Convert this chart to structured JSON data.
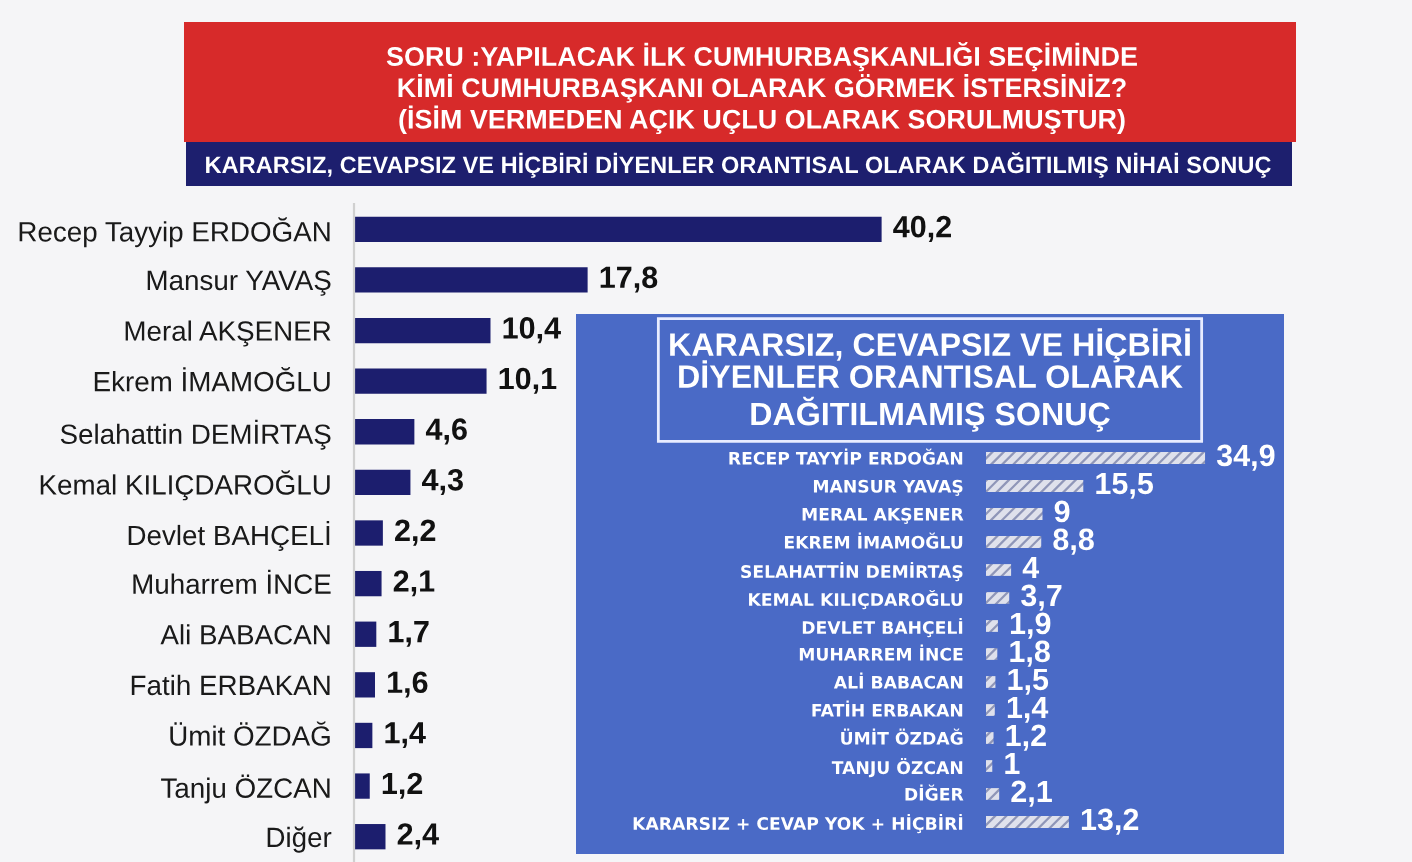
{
  "chart_data": [
    {
      "type": "bar",
      "orientation": "horizontal",
      "title": "SORU :YAPILACAK İLK CUMHURBAŞKANLIĞI SEÇİMİNDE\nKİMİ CUMHURBAŞKANI OLARAK GÖRMEK İSTERSİNİZ?\n(İSİM VERMEDEN AÇIK UÇLU OLARAK SORULMUŞTUR)",
      "subtitle": "KARARSIZ, CEVAPSIZ VE HİÇBİRİ DİYENLER ORANTISAL OLARAK DAĞITILMIŞ NİHAİ SONUÇ",
      "categories": [
        "Recep Tayyip ERDOĞAN",
        "Mansur YAVAŞ",
        "Meral AKŞENER",
        "Ekrem İMAMOĞLU",
        "Selahattin DEMİRTAŞ",
        "Kemal KILIÇDAROĞLU",
        "Devlet BAHÇELİ",
        "Muharrem İNCE",
        "Ali BABACAN",
        "Fatih ERBAKAN",
        "Ümit ÖZDAĞ",
        "Tanju ÖZCAN",
        "Diğer"
      ],
      "values": [
        40.2,
        17.8,
        10.4,
        10.1,
        4.6,
        4.3,
        2.2,
        2.1,
        1.7,
        1.6,
        1.4,
        1.2,
        2.4
      ],
      "value_labels": [
        "40,2",
        "17,8",
        "10,4",
        "10,1",
        "4,6",
        "4,3",
        "2,2",
        "2,1",
        "1,7",
        "1,6",
        "1,4",
        "1,2",
        "2,4"
      ],
      "color": "#1c1e6e",
      "tick_labels": "y"
    },
    {
      "type": "bar",
      "orientation": "horizontal",
      "title": "KARARSIZ, CEVAPSIZ VE HİÇBİRİ\nDİYENLER ORANTISAL OLARAK\nDAĞITILMAMIŞ SONUÇ",
      "categories": [
        "RECEP TAYYİP ERDOĞAN",
        "MANSUR YAVAŞ",
        "MERAL AKŞENER",
        "EKREM İMAMOĞLU",
        "SELAHATTİN DEMİRTAŞ",
        "KEMAL KILIÇDAROĞLU",
        "DEVLET BAHÇELİ",
        "MUHARREM İNCE",
        "ALİ BABACAN",
        "FATİH ERBAKAN",
        "ÜMİT ÖZDAĞ",
        "TANJU ÖZCAN",
        "DİĞER",
        "KARARSIZ + CEVAP YOK + HİÇBİRİ"
      ],
      "values": [
        34.9,
        15.5,
        9,
        8.8,
        4,
        3.7,
        1.9,
        1.8,
        1.5,
        1.4,
        1.2,
        1,
        2.1,
        13.2
      ],
      "value_labels": [
        "34,9",
        "15,5",
        "9",
        "8,8",
        "4",
        "3,7",
        "1,9",
        "1,8",
        "1,5",
        "1,4",
        "1,2",
        "1",
        "2,1",
        "13,2"
      ],
      "color": "#dfe1ec",
      "tick_labels": "y"
    }
  ]
}
